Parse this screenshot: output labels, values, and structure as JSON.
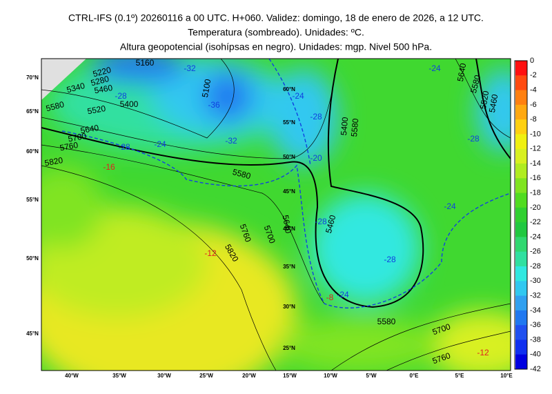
{
  "header": {
    "lines": [
      "CTRL-IFS (0.1º) 20260116 a 00 UTC. H+060. Validez: domingo, 18 de enero de 2026, a 12 UTC.",
      "Temperatura (sombreado). Unidades: ºC.",
      "Altura geopotencial (isohípsas en negro). Unidades: mgp. Nivel 500 hPa."
    ]
  },
  "colorbar": {
    "labels": [
      0,
      -2,
      -4,
      -6,
      -8,
      -10,
      -12,
      -14,
      -16,
      -18,
      -20,
      -22,
      -24,
      -26,
      -28,
      -30,
      -32,
      -34,
      -36,
      -38,
      -40,
      -42
    ],
    "colors": [
      "#ff1010",
      "#ff4a10",
      "#ff8010",
      "#ffa810",
      "#ffd010",
      "#f0f010",
      "#d8f020",
      "#b0ec20",
      "#80e420",
      "#50dc20",
      "#30d030",
      "#20c840",
      "#30d870",
      "#30e0a0",
      "#30e8e0",
      "#30c8f0",
      "#30a0f0",
      "#2078f0",
      "#2050f0",
      "#1030f0",
      "#0000e0"
    ]
  },
  "map": {
    "lon_labels": [
      "40°W",
      "35°W",
      "30°W",
      "25°W",
      "20°W",
      "15°W",
      "10°W",
      "5°W",
      "0°E",
      "5°E",
      "10°E"
    ],
    "lat_labels_left": [
      "70°N",
      "65°N",
      "60°N",
      "55°N",
      "50°N",
      "45°N"
    ],
    "lat_labels_inner": [
      "60°N",
      "55°N",
      "50°N",
      "45°N",
      "40°N",
      "35°N",
      "30°N",
      "25°N"
    ],
    "height_labels": [
      "5160",
      "5220",
      "5280",
      "5340",
      "5460",
      "5400",
      "5520",
      "5580",
      "5640",
      "5700",
      "5760",
      "5820",
      "5580",
      "5100",
      "5700",
      "5760",
      "5820",
      "5640",
      "5460",
      "5400",
      "5580",
      "5580",
      "5700",
      "5760",
      "5640",
      "5580",
      "5520",
      "5460"
    ],
    "temp_labels_blue": [
      "-36",
      "-32",
      "-32",
      "-28",
      "-28",
      "-24",
      "-24",
      "-28",
      "-20",
      "-28",
      "-28",
      "-24",
      "-28",
      "-24",
      "-24"
    ],
    "temp_labels_red": [
      "-16",
      "-12",
      "-12",
      "-8"
    ]
  }
}
